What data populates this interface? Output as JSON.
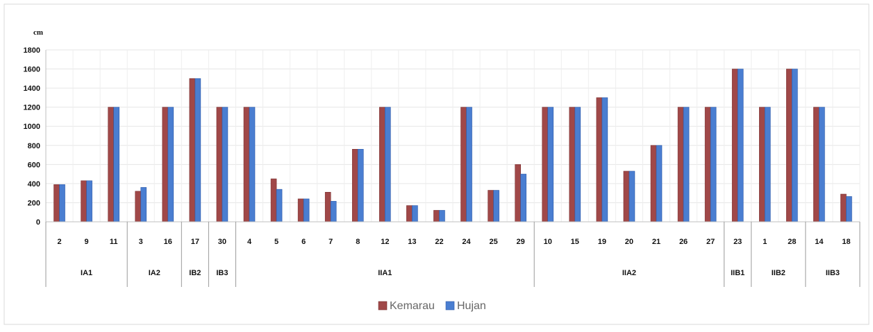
{
  "chart_data": {
    "type": "bar",
    "title": "",
    "ylabel": "cm",
    "ylim": [
      0,
      1800
    ],
    "yticks": [
      0,
      200,
      400,
      600,
      800,
      1000,
      1200,
      1400,
      1600,
      1800
    ],
    "grid": true,
    "legend_position": "bottom",
    "colors": {
      "Kemarau": "#a04848",
      "Hujan": "#4a7ed1"
    },
    "groups": [
      {
        "label": "IA1",
        "categories": [
          "2",
          "9",
          "11"
        ],
        "values": {
          "Kemarau": [
            390,
            430,
            1200
          ],
          "Hujan": [
            390,
            430,
            1200
          ]
        }
      },
      {
        "label": "IA2",
        "categories": [
          "3",
          "16"
        ],
        "values": {
          "Kemarau": [
            320,
            1200
          ],
          "Hujan": [
            360,
            1200
          ]
        }
      },
      {
        "label": "IB2",
        "categories": [
          "17"
        ],
        "values": {
          "Kemarau": [
            1500
          ],
          "Hujan": [
            1500
          ]
        }
      },
      {
        "label": "IB3",
        "categories": [
          "30"
        ],
        "values": {
          "Kemarau": [
            1200
          ],
          "Hujan": [
            1200
          ]
        }
      },
      {
        "label": "IIA1",
        "categories": [
          "4",
          "5",
          "6",
          "7",
          "8",
          "12",
          "13",
          "22",
          "24",
          "25",
          "29"
        ],
        "values": {
          "Kemarau": [
            1200,
            450,
            240,
            310,
            760,
            1200,
            170,
            120,
            1200,
            330,
            600
          ],
          "Hujan": [
            1200,
            340,
            240,
            215,
            760,
            1200,
            170,
            120,
            1200,
            330,
            500
          ]
        }
      },
      {
        "label": "IIA2",
        "categories": [
          "10",
          "15",
          "19",
          "20",
          "21",
          "26",
          "27"
        ],
        "values": {
          "Kemarau": [
            1200,
            1200,
            1300,
            530,
            800,
            1200,
            1200
          ],
          "Hujan": [
            1200,
            1200,
            1300,
            530,
            800,
            1200,
            1200
          ]
        }
      },
      {
        "label": "IIB1",
        "categories": [
          "23"
        ],
        "values": {
          "Kemarau": [
            1600
          ],
          "Hujan": [
            1600
          ]
        }
      },
      {
        "label": "IIB2",
        "categories": [
          "1",
          "28"
        ],
        "values": {
          "Kemarau": [
            1200,
            1600
          ],
          "Hujan": [
            1200,
            1600
          ]
        }
      },
      {
        "label": "IIB3",
        "categories": [
          "14",
          "18"
        ],
        "values": {
          "Kemarau": [
            1200,
            290
          ],
          "Hujan": [
            1200,
            265
          ]
        }
      }
    ],
    "series": [
      {
        "name": "Kemarau"
      },
      {
        "name": "Hujan"
      }
    ]
  }
}
